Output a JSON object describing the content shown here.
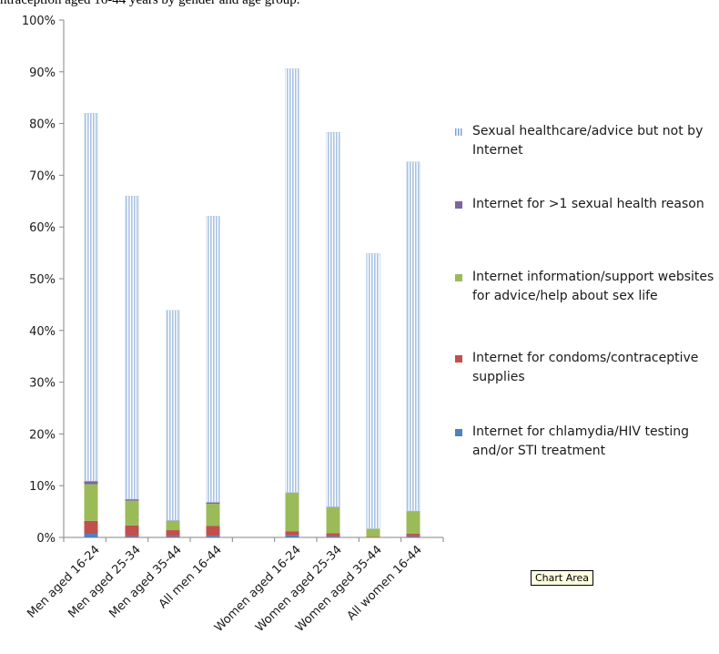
{
  "page": {
    "top_caption": "ntraception aged 16-44 years by gender and age group.",
    "tooltip": "Chart Area"
  },
  "chart_data": {
    "type": "bar",
    "stacked": true,
    "categories": [
      "Men aged 16-24",
      "Men aged 25-34",
      "Men aged 35-44",
      "All men 16-44",
      "Women aged 16-24",
      "Women aged 25-34",
      "Women aged 35-44",
      "All women 16-44"
    ],
    "y_tick_labels": [
      "0%",
      "10%",
      "20%",
      "30%",
      "40%",
      "50%",
      "60%",
      "70%",
      "80%",
      "90%",
      "100%"
    ],
    "ylim": [
      0,
      100
    ],
    "y_unit": "%",
    "grid": false,
    "legend_position": "right",
    "series": [
      {
        "name": "Internet for chlamydia/HIV testing and/or STI treatment",
        "color": "#4f81bd",
        "pattern": "solid",
        "values": [
          0.7,
          0.2,
          0.2,
          0.3,
          0.4,
          0.2,
          0.0,
          0.2
        ]
      },
      {
        "name": "Internet for condoms/contraceptive supplies",
        "color": "#c0504d",
        "pattern": "solid",
        "values": [
          2.5,
          2.1,
          1.2,
          1.9,
          0.8,
          0.6,
          0.1,
          0.5
        ]
      },
      {
        "name": "Internet information/support websites for advice/help about sex life",
        "color": "#9bbb59",
        "pattern": "solid",
        "values": [
          7.1,
          4.8,
          1.8,
          4.3,
          7.4,
          5.0,
          1.6,
          4.3
        ]
      },
      {
        "name": "Internet for >1 sexual health reason",
        "color": "#8064a2",
        "pattern": "solid",
        "values": [
          0.6,
          0.3,
          0.1,
          0.3,
          0.1,
          0.1,
          0.0,
          0.1
        ]
      },
      {
        "name": "Sexual healthcare/advice but not by Internet",
        "color": "#b9cde5",
        "pattern": "vertical-stripes",
        "values": [
          71.1,
          58.6,
          40.6,
          55.3,
          81.9,
          72.4,
          53.2,
          67.5
        ]
      }
    ]
  }
}
